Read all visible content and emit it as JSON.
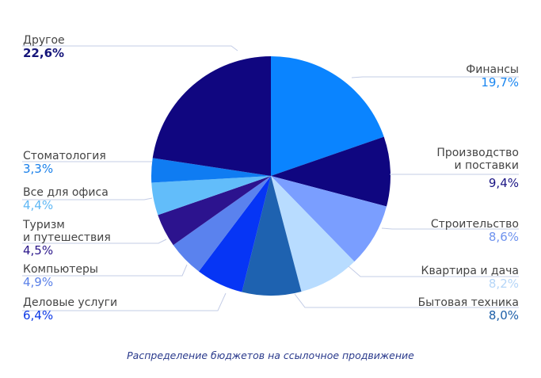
{
  "chart_data": {
    "type": "pie",
    "title": "Распределение бюджетов на ссылочное продвижение",
    "start_angle_deg": 0,
    "direction": "clockwise",
    "categories": [
      "Финансы",
      "Производство и поставки",
      "Строительство",
      "Квартира и дача",
      "Бытовая техника",
      "Деловые услуги",
      "Компьютеры",
      "Туризм и путешествия",
      "Все для офиса",
      "Стоматология",
      "Другое"
    ],
    "values": [
      19.7,
      9.4,
      8.6,
      8.2,
      8.0,
      6.4,
      4.9,
      4.5,
      4.4,
      3.3,
      22.6
    ],
    "colors": [
      "#0a84ff",
      "#0f0680",
      "#7a9eff",
      "#b8dcff",
      "#1e62b0",
      "#0635f5",
      "#5a82ee",
      "#2c138e",
      "#62bdfa",
      "#0f7cf2",
      "#100680"
    ],
    "labels": [
      {
        "name": "Финансы",
        "pct": "19,7%",
        "pct_color": "#1a86f0",
        "side": "right"
      },
      {
        "name": "Производство\nи поставки",
        "pct": "9,4%",
        "pct_color": "#1a1585",
        "side": "right"
      },
      {
        "name": "Строительство",
        "pct": "8,6%",
        "pct_color": "#6f93ee",
        "side": "right"
      },
      {
        "name": "Квартира и дача",
        "pct": "8,2%",
        "pct_color": "#b5d6f8",
        "side": "right"
      },
      {
        "name": "Бытовая техника",
        "pct": "8,0%",
        "pct_color": "#1d5fa8",
        "side": "right"
      },
      {
        "name": "Деловые услуги",
        "pct": "6,4%",
        "pct_color": "#0a37e6",
        "side": "left"
      },
      {
        "name": "Компьютеры",
        "pct": "4,9%",
        "pct_color": "#5a80e8",
        "side": "left"
      },
      {
        "name": "Туризм\nи путешествия",
        "pct": "4,5%",
        "pct_color": "#2a168a",
        "side": "left"
      },
      {
        "name": "Все для офиса",
        "pct": "4,4%",
        "pct_color": "#5fb8f5",
        "side": "left"
      },
      {
        "name": "Стоматология",
        "pct": "3,3%",
        "pct_color": "#1a80ea",
        "side": "left"
      },
      {
        "name": "Другое",
        "pct": "22,6%",
        "pct_color": "#15157a",
        "side": "left"
      }
    ],
    "legend": "none",
    "grid": false
  },
  "caption": "Распределение бюджетов на ссылочное продвижение"
}
